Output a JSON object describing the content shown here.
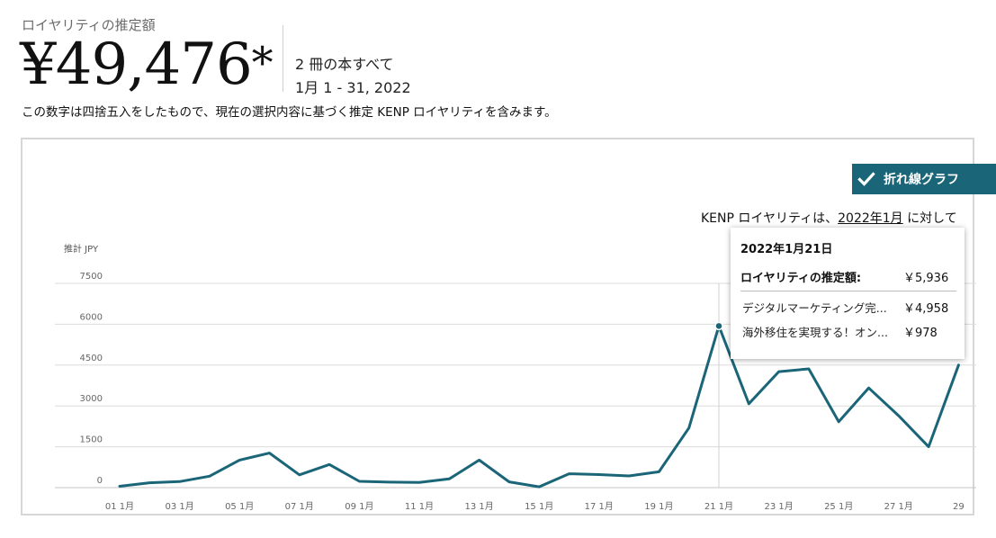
{
  "header": {
    "section_label": "ロイヤリティの推定額",
    "amount": "¥49,476",
    "asterisk": "*",
    "books_count": "2 冊の本すべて",
    "date_range": "1月 1 - 31, 2022",
    "note": "この数字は四捨五入をしたもので、現在の選択内容に基づく推定 KENP ロイヤリティを含みます。"
  },
  "chart_panel": {
    "toggle_label": "折れ線グラフ",
    "kenp_note_prefix": "KENP ロイヤリティは、",
    "kenp_note_link": "2022年1月",
    "kenp_note_suffix": " に対して",
    "accent_color": "#1a6577"
  },
  "tooltip": {
    "date": "2022年1月21日",
    "total_label": "ロイヤリティの推定額:",
    "total_value": "￥5,936",
    "rows": [
      {
        "title": "デジタルマーケティング完...",
        "value": "￥4,958"
      },
      {
        "title": "海外移住を実現する！オン...",
        "value": "￥978"
      }
    ]
  },
  "chart_data": {
    "type": "line",
    "ylabel": "推計 JPY",
    "yticks": [
      "7500",
      "6000",
      "4500",
      "3000",
      "1500",
      "0"
    ],
    "ylim": [
      0,
      7500
    ],
    "x_tick_labels": [
      "01 1月",
      "03 1月",
      "05 1月",
      "07 1月",
      "09 1月",
      "11 1月",
      "13 1月",
      "15 1月",
      "17 1月",
      "19 1月",
      "21 1月",
      "23 1月",
      "25 1月",
      "27 1月",
      "29"
    ],
    "x": [
      1,
      2,
      3,
      4,
      5,
      6,
      7,
      8,
      9,
      10,
      11,
      12,
      13,
      14,
      15,
      16,
      17,
      18,
      19,
      20,
      21,
      22,
      23,
      24,
      25,
      26,
      27,
      28,
      29
    ],
    "values": [
      50,
      180,
      220,
      420,
      1010,
      1270,
      470,
      850,
      230,
      200,
      190,
      320,
      1010,
      210,
      30,
      510,
      480,
      430,
      580,
      2190,
      5936,
      3080,
      4260,
      4360,
      2420,
      3660,
      2640,
      1500,
      4500
    ],
    "highlight_x": 21,
    "line_color": "#1a6577",
    "grid": true
  }
}
